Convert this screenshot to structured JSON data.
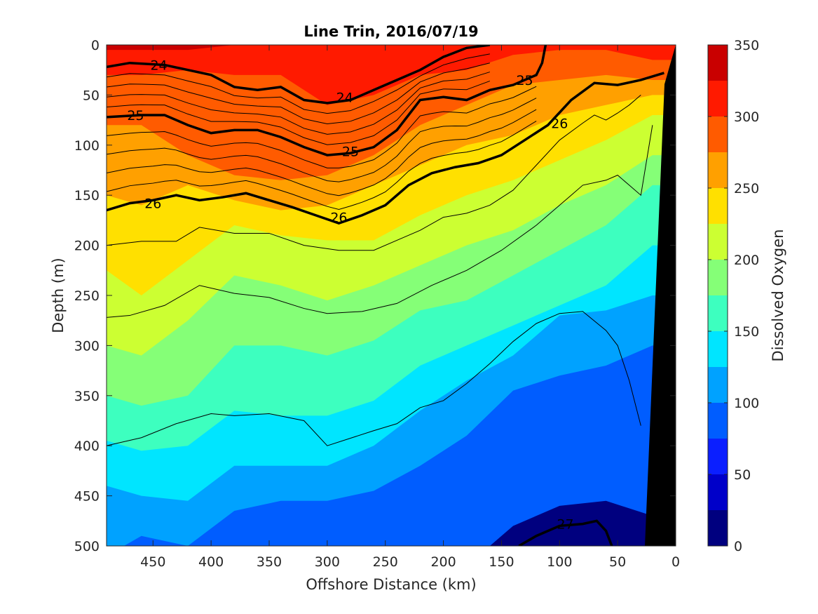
{
  "chart_data": {
    "type": "heatmap",
    "subtype": "filled-contour-section",
    "title": "Line Trin, 2016/07/19",
    "xlabel": "Offshore Distance (km)",
    "ylabel": "Depth (m)",
    "colorbar_label": "Dissolved Oxygen",
    "xlim": [
      490,
      0
    ],
    "ylim": [
      500,
      0
    ],
    "x_ticks": [
      450,
      400,
      350,
      300,
      250,
      200,
      150,
      100,
      50,
      0
    ],
    "y_ticks": [
      0,
      50,
      100,
      150,
      200,
      250,
      300,
      350,
      400,
      450,
      500
    ],
    "colorbar": {
      "levels": [
        0,
        25,
        50,
        75,
        100,
        125,
        150,
        175,
        200,
        225,
        250,
        275,
        300,
        325,
        350
      ],
      "tick_labels": [
        0,
        50,
        100,
        150,
        200,
        250,
        300,
        350
      ],
      "colors": [
        "#00007f",
        "#0000c9",
        "#0b1fff",
        "#005dff",
        "#00a2ff",
        "#00e5ff",
        "#3dffbf",
        "#85ff77",
        "#ccff32",
        "#ffe000",
        "#ffa000",
        "#ff5b00",
        "#ff1a00",
        "#c90000"
      ]
    },
    "oxygen_profiles": [
      {
        "x": 490,
        "boundaries": [
          5,
          30,
          80,
          150,
          225,
          300,
          350,
          395,
          440,
          510
        ]
      },
      {
        "x": 460,
        "boundaries": [
          5,
          30,
          80,
          160,
          250,
          310,
          360,
          405,
          450,
          490,
          520
        ]
      },
      {
        "x": 420,
        "boundaries": [
          5,
          25,
          110,
          140,
          215,
          275,
          350,
          400,
          455,
          500
        ]
      },
      {
        "x": 380,
        "boundaries": [
          0,
          30,
          130,
          155,
          180,
          230,
          300,
          365,
          420,
          465
        ]
      },
      {
        "x": 340,
        "boundaries": [
          0,
          30,
          135,
          165,
          190,
          240,
          300,
          370,
          420,
          455
        ]
      },
      {
        "x": 300,
        "boundaries": [
          0,
          60,
          130,
          160,
          195,
          255,
          310,
          370,
          420,
          455
        ]
      },
      {
        "x": 260,
        "boundaries": [
          0,
          50,
          110,
          140,
          195,
          240,
          295,
          355,
          400,
          445
        ]
      },
      {
        "x": 220,
        "boundaries": [
          0,
          30,
          80,
          120,
          170,
          220,
          265,
          320,
          365,
          420
        ]
      },
      {
        "x": 180,
        "boundaries": [
          0,
          25,
          60,
          100,
          150,
          200,
          255,
          300,
          335,
          390
        ]
      },
      {
        "x": 140,
        "boundaries": [
          0,
          10,
          40,
          90,
          135,
          185,
          230,
          280,
          310,
          345,
          480
        ]
      },
      {
        "x": 100,
        "boundaries": [
          0,
          5,
          35,
          70,
          115,
          160,
          205,
          260,
          270,
          330,
          460
        ]
      },
      {
        "x": 60,
        "boundaries": [
          0,
          5,
          30,
          60,
          95,
          140,
          180,
          240,
          265,
          320,
          455
        ]
      },
      {
        "x": 20,
        "boundaries": [
          0,
          15,
          35,
          50,
          70,
          110,
          140,
          200,
          250,
          300,
          470
        ]
      }
    ],
    "density_contours": [
      {
        "level": 24,
        "bold": true,
        "label": "24",
        "x": [
          490,
          470,
          440,
          420,
          400,
          380,
          360,
          340,
          320,
          300,
          280,
          260,
          240,
          220,
          200,
          180,
          160
        ],
        "y": [
          22,
          18,
          20,
          25,
          30,
          42,
          45,
          42,
          55,
          58,
          55,
          45,
          35,
          25,
          12,
          3,
          0
        ]
      },
      {
        "level": 25,
        "bold": true,
        "label": "25",
        "x": [
          490,
          460,
          440,
          420,
          400,
          380,
          360,
          340,
          320,
          300,
          280,
          260,
          240,
          220,
          200,
          180,
          160,
          140,
          120,
          115,
          112
        ],
        "y": [
          72,
          70,
          70,
          80,
          88,
          85,
          85,
          92,
          102,
          110,
          108,
          102,
          85,
          55,
          52,
          55,
          45,
          40,
          30,
          18,
          0
        ]
      },
      {
        "level": 26,
        "bold": true,
        "label": "26",
        "x": [
          490,
          470,
          450,
          430,
          410,
          390,
          370,
          350,
          330,
          310,
          290,
          270,
          250,
          230,
          210,
          190,
          170,
          150,
          130,
          110,
          90,
          70,
          50,
          30,
          10
        ],
        "y": [
          165,
          158,
          155,
          150,
          155,
          152,
          148,
          155,
          162,
          170,
          178,
          170,
          160,
          140,
          128,
          122,
          118,
          110,
          95,
          80,
          55,
          38,
          40,
          35,
          28
        ]
      },
      {
        "level": 27,
        "bold": true,
        "label": "27",
        "x": [
          135,
          120,
          100,
          80,
          68,
          60,
          55
        ],
        "y": [
          500,
          490,
          480,
          478,
          475,
          485,
          500
        ]
      }
    ],
    "thin_contour_levels": "0.2 intervals between labeled isopycnals"
  }
}
